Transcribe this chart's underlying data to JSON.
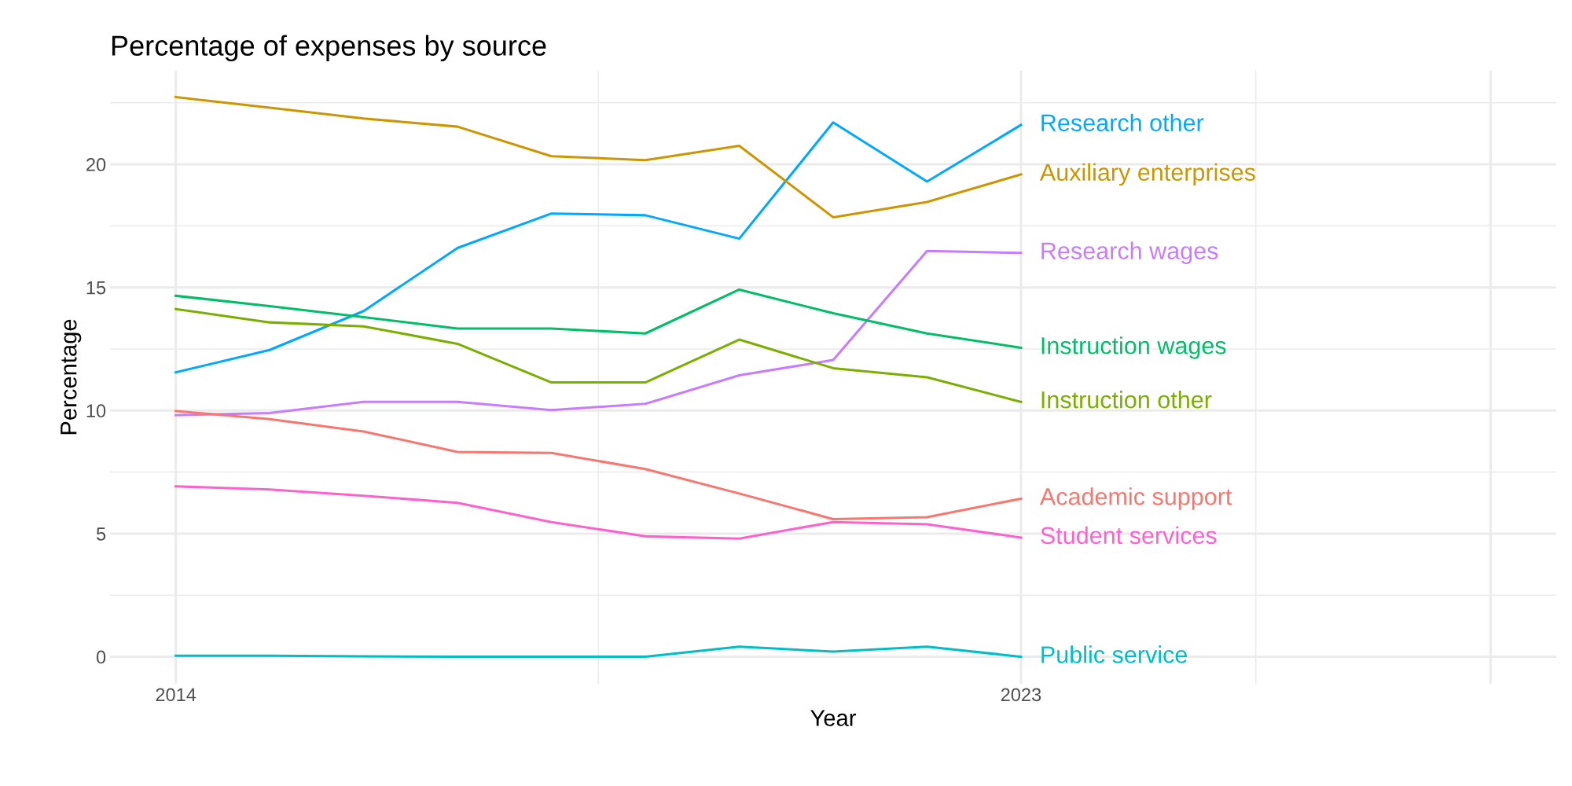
{
  "chart_data": {
    "type": "line",
    "title": "Percentage of expenses by source",
    "xlabel": "Year",
    "ylabel": "Percentage",
    "x": [
      2014,
      2015,
      2016,
      2017,
      2018,
      2019,
      2020,
      2021,
      2022,
      2023
    ],
    "series": [
      {
        "name": "Research other",
        "color": "#00A9FF",
        "values": [
          11.55,
          12.46,
          14.04,
          16.6,
          18.0,
          17.93,
          16.98,
          21.7,
          19.3,
          21.6
        ]
      },
      {
        "name": "Auxiliary enterprises",
        "color": "#CD9600",
        "values": [
          22.73,
          22.3,
          21.86,
          21.53,
          20.33,
          20.17,
          20.75,
          17.85,
          18.47,
          19.59
        ]
      },
      {
        "name": "Research wages",
        "color": "#C77CFF",
        "values": [
          9.81,
          9.9,
          10.35,
          10.35,
          10.02,
          10.27,
          11.43,
          12.05,
          16.48,
          16.4
        ]
      },
      {
        "name": "Instruction wages",
        "color": "#00BE67",
        "values": [
          14.66,
          14.24,
          13.79,
          13.33,
          13.33,
          13.13,
          14.91,
          13.95,
          13.13,
          12.55
        ]
      },
      {
        "name": "Instruction other",
        "color": "#7CAE00",
        "values": [
          14.12,
          13.58,
          13.42,
          12.71,
          11.14,
          11.14,
          12.88,
          11.72,
          11.35,
          10.35
        ]
      },
      {
        "name": "Academic support",
        "color": "#F8766D",
        "values": [
          9.98,
          9.65,
          9.15,
          8.32,
          8.28,
          7.62,
          6.63,
          5.59,
          5.67,
          6.42
        ]
      },
      {
        "name": "Student services",
        "color": "#FF61CC",
        "values": [
          6.92,
          6.79,
          6.54,
          6.25,
          5.47,
          4.89,
          4.8,
          5.47,
          5.38,
          4.84
        ]
      },
      {
        "name": "Public service",
        "color": "#00BFC4",
        "values": [
          0.04,
          0.04,
          0.02,
          0.0,
          0.0,
          0.0,
          0.41,
          0.21,
          0.41,
          0.0
        ]
      }
    ],
    "xlim": [
      2013.3,
      2028.7
    ],
    "xticks": [
      2014,
      {
        "value": 2018.5,
        "label": null
      },
      2023,
      {
        "value": 2025.5,
        "label": null
      },
      {
        "value": 2028,
        "label": null
      }
    ],
    "ylim": [
      -1.1,
      23.8
    ],
    "yticks": [
      0,
      {
        "value": 2.5,
        "label": null
      },
      5,
      {
        "value": 7.5,
        "label": null
      },
      10,
      {
        "value": 12.5,
        "label": null
      },
      15,
      {
        "value": 17.5,
        "label": null
      },
      20,
      {
        "value": 22.5,
        "label": null
      }
    ],
    "grid": true,
    "legend": false,
    "marker": "none",
    "line_style": "solid"
  }
}
